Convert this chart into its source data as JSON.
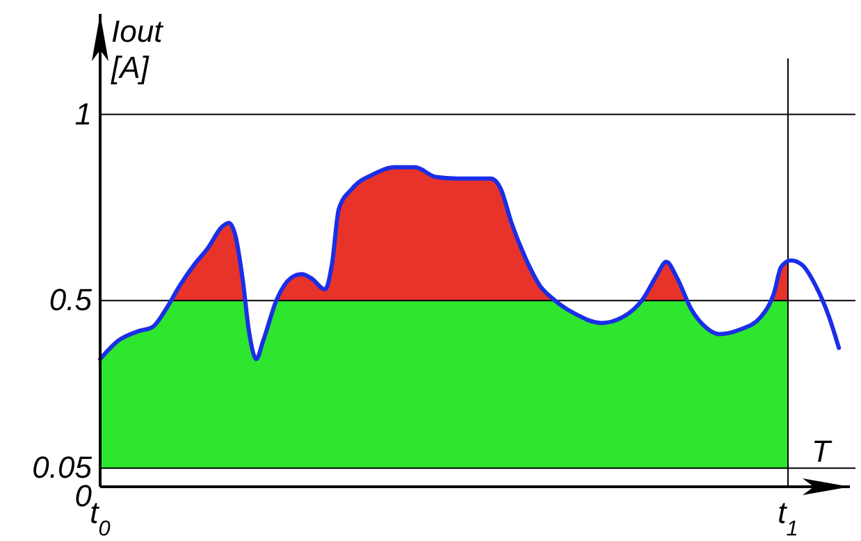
{
  "chart_data": {
    "type": "line",
    "xlabel": "T",
    "ylabel": "Iout [A]",
    "xlim": [
      0,
      1.09
    ],
    "ylim": [
      0,
      1.27
    ],
    "xticks": [
      {
        "value": 0,
        "label": "t$_{0}$"
      },
      {
        "value": 1,
        "label": "t$_{1}$"
      }
    ],
    "yticks": [
      0,
      0.05,
      0.5,
      1
    ],
    "grid": "y",
    "x": [
      0,
      0.026,
      0.056,
      0.076,
      0.096,
      0.116,
      0.137,
      0.157,
      0.177,
      0.187,
      0.197,
      0.207,
      0.217,
      0.227,
      0.237,
      0.257,
      0.277,
      0.293,
      0.307,
      0.327,
      0.337,
      0.347,
      0.367,
      0.398,
      0.428,
      0.458,
      0.488,
      0.518,
      0.568,
      0.582,
      0.598,
      0.618,
      0.639,
      0.659,
      0.689,
      0.729,
      0.759,
      0.789,
      0.809,
      0.823,
      0.839,
      0.859,
      0.88,
      0.9,
      0.93,
      0.96,
      0.98,
      0.99,
      1.004,
      1.02,
      1.04,
      1.06,
      1.074
    ],
    "series": [
      {
        "color": "#1a2ee6",
        "values": [
          0.343,
          0.392,
          0.418,
          0.429,
          0.478,
          0.541,
          0.597,
          0.642,
          0.698,
          0.709,
          0.672,
          0.56,
          0.41,
          0.343,
          0.392,
          0.504,
          0.56,
          0.571,
          0.56,
          0.53,
          0.597,
          0.746,
          0.802,
          0.84,
          0.858,
          0.858,
          0.832,
          0.828,
          0.828,
          0.802,
          0.709,
          0.616,
          0.541,
          0.504,
          0.466,
          0.44,
          0.455,
          0.504,
          0.567,
          0.604,
          0.56,
          0.478,
          0.429,
          0.41,
          0.422,
          0.455,
          0.522,
          0.59,
          0.608,
          0.597,
          0.541,
          0.455,
          0.373
        ]
      }
    ],
    "ref_lines": [
      {
        "axis": "x",
        "value": 1,
        "label": null,
        "color": "#000000"
      }
    ],
    "bands": [
      {
        "axis": "y",
        "from": 0.05,
        "to": 0.5,
        "color": "#2ee62e"
      },
      {
        "axis": "y",
        "from": 0.5,
        "to": 1.27,
        "color": "#e8332a"
      }
    ]
  }
}
